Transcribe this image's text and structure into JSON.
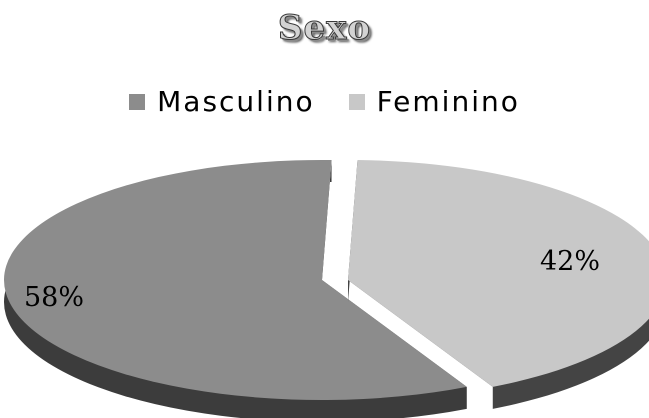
{
  "chart_data": {
    "type": "pie",
    "title": "Sexo",
    "categories": [
      "Masculino",
      "Feminino"
    ],
    "values": [
      58,
      42
    ],
    "labels": [
      "58%",
      "42%"
    ],
    "legend_position": "top",
    "style": "3d-exploded",
    "colors": [
      "#8c8c8c",
      "#c8c8c8"
    ],
    "side_colors": [
      "#3c3c3c",
      "#444444"
    ]
  }
}
